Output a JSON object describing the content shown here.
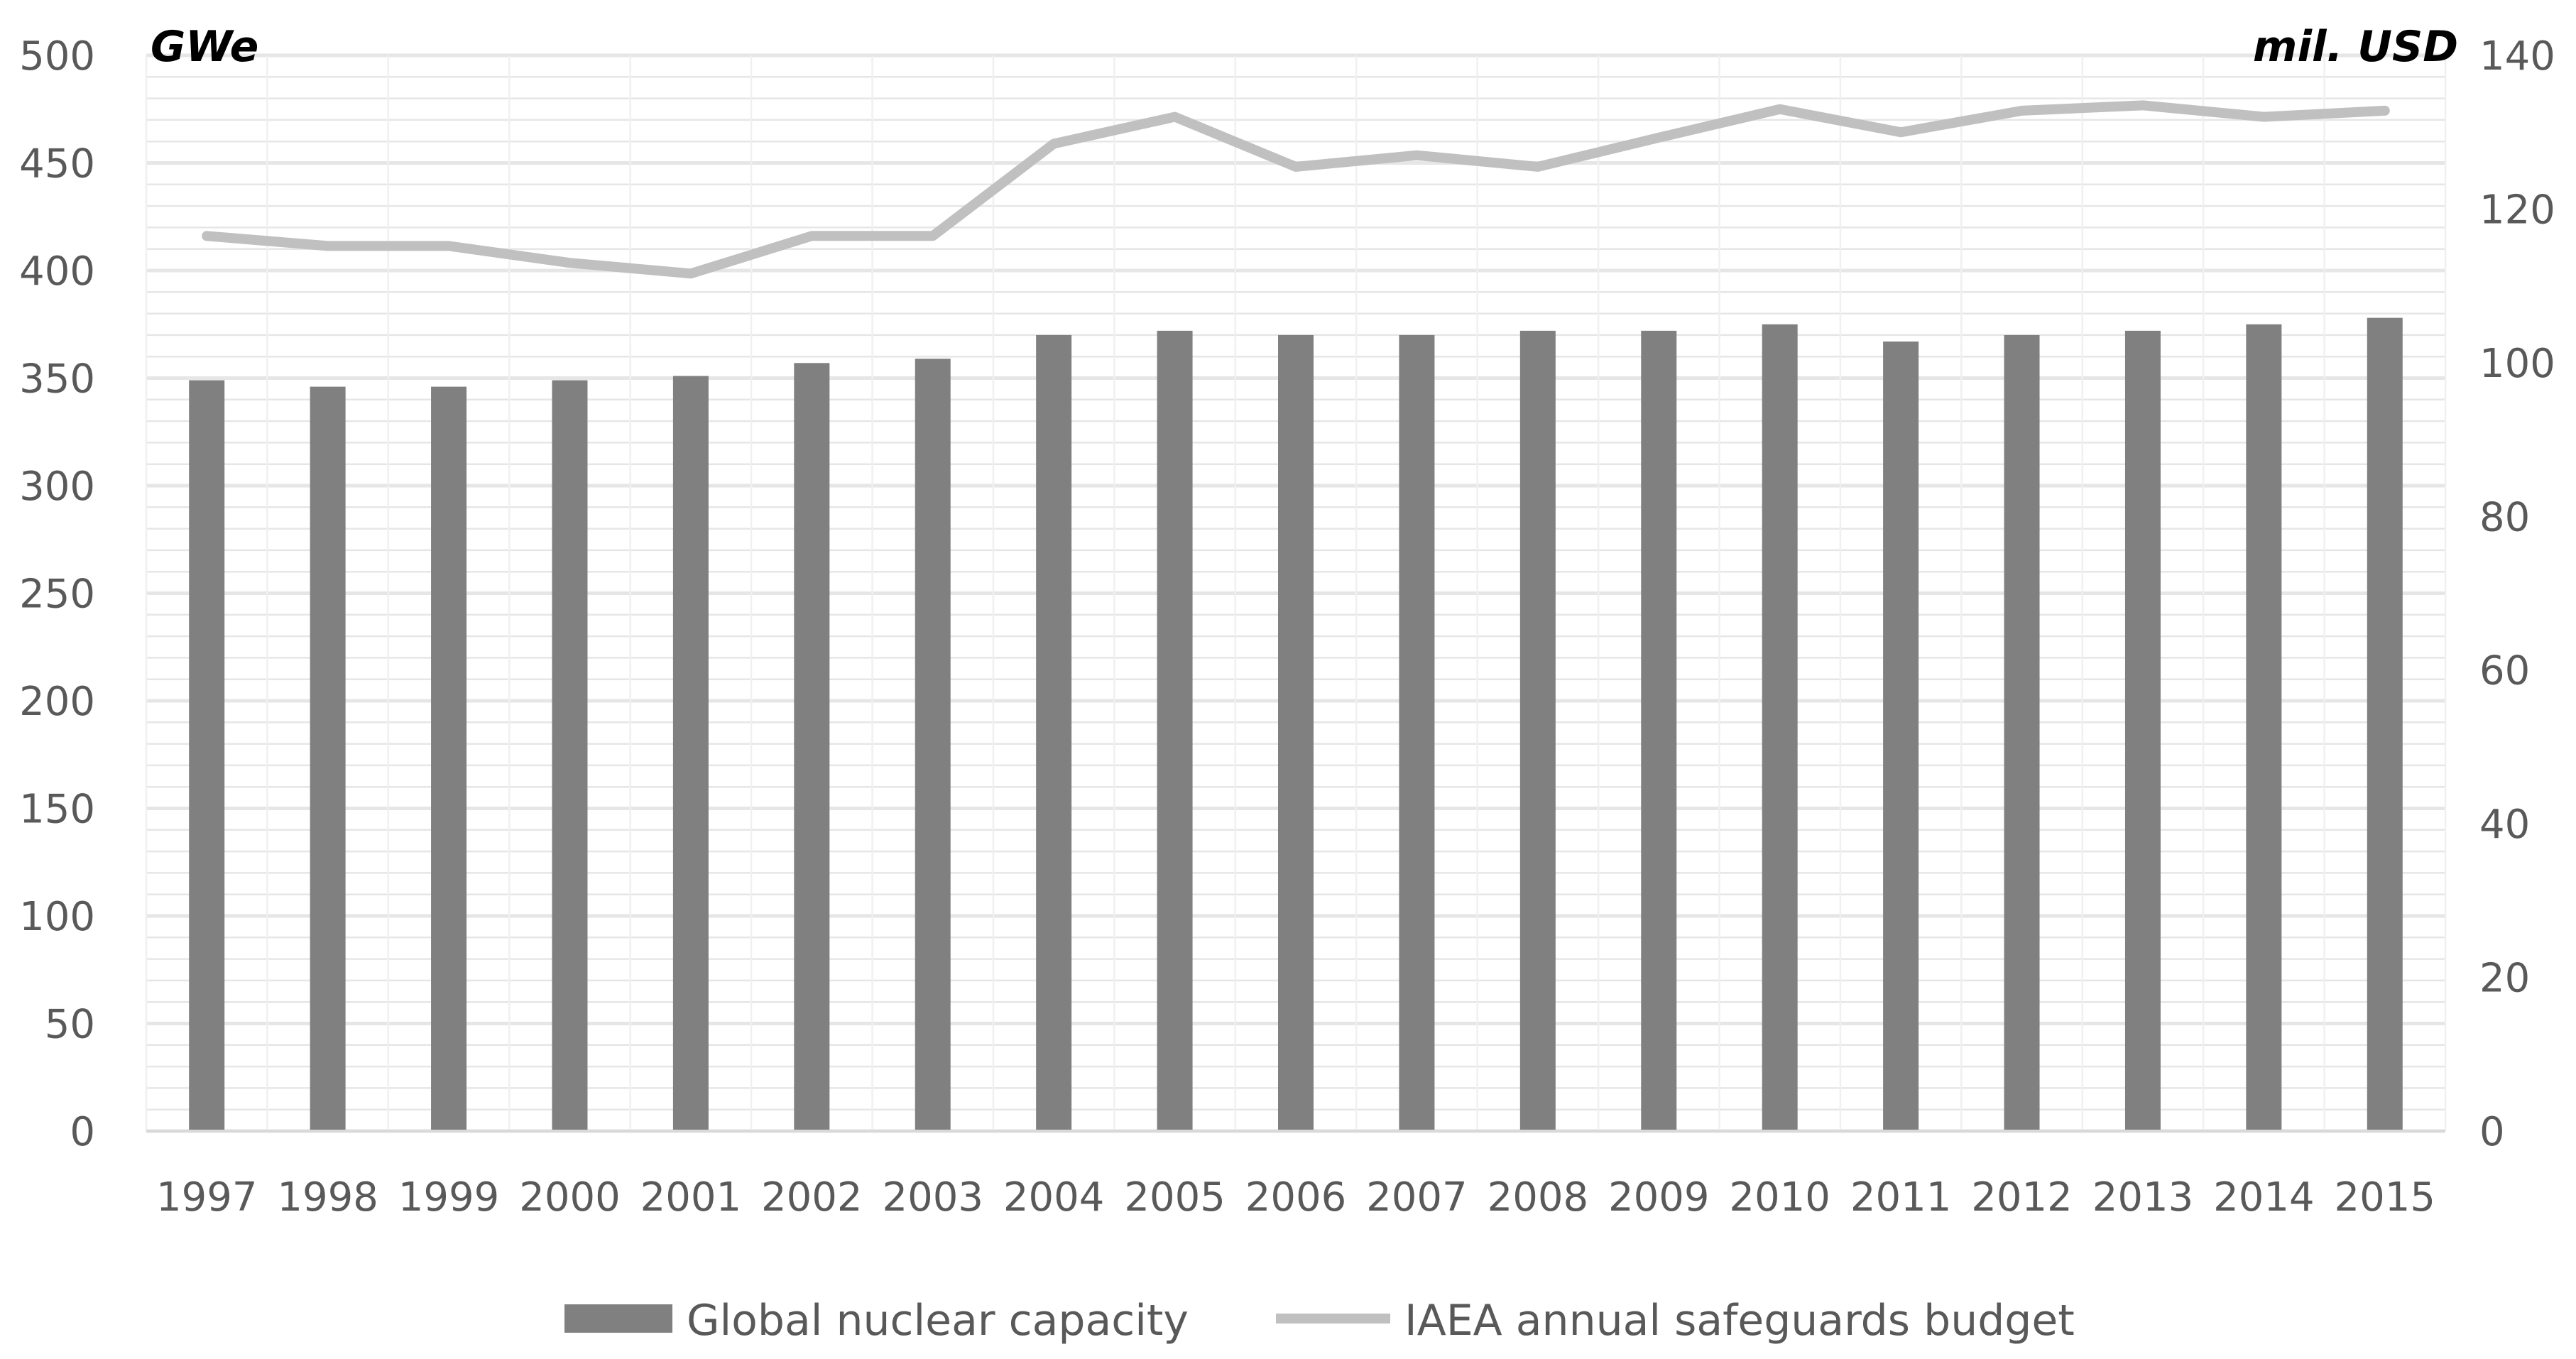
{
  "chart_data": {
    "type": "bar",
    "categories": [
      "1997",
      "1998",
      "1999",
      "2000",
      "2001",
      "2002",
      "2003",
      "2004",
      "2005",
      "2006",
      "2007",
      "2008",
      "2009",
      "2010",
      "2011",
      "2012",
      "2013",
      "2014",
      "2015"
    ],
    "series": [
      {
        "name": "Global nuclear capacity",
        "type": "bar",
        "axis": "left",
        "values": [
          349,
          346,
          346,
          349,
          351,
          357,
          359,
          370,
          372,
          370,
          370,
          372,
          372,
          375,
          367,
          370,
          372,
          375,
          378
        ]
      },
      {
        "name": "IAEA annual safeguards budget",
        "type": "line",
        "axis": "right",
        "values": [
          116.5,
          115.2,
          115.2,
          113.0,
          111.6,
          116.5,
          116.5,
          128.5,
          132.0,
          125.5,
          127.0,
          125.5,
          129.3,
          133.0,
          130.0,
          132.8,
          133.5,
          132.0,
          132.8
        ]
      }
    ],
    "left_axis": {
      "unit_label": "GWe",
      "ylim": [
        0,
        500
      ],
      "ticks": [
        "0",
        "50",
        "100",
        "150",
        "200",
        "250",
        "300",
        "350",
        "400",
        "450",
        "500"
      ]
    },
    "right_axis": {
      "unit_label": "mil. USD",
      "ylim": [
        0,
        140
      ],
      "ticks": [
        "0",
        "20",
        "40",
        "60",
        "80",
        "100",
        "120",
        "140"
      ]
    },
    "grid": true,
    "legend_position": "bottom",
    "colors": {
      "bar": "#808080",
      "line": "#c0c0c0",
      "grid": "#e6e6e6",
      "tick_text": "#595959",
      "unit_text": "#000000"
    }
  }
}
